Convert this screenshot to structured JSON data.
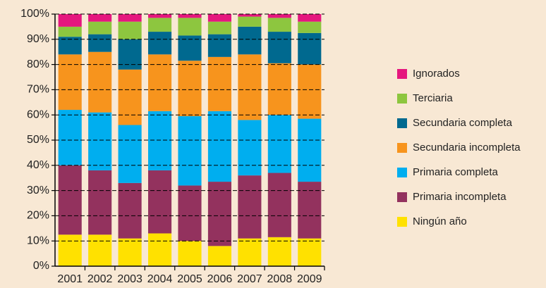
{
  "chart_data": {
    "type": "stacked_bar",
    "categories": [
      "2001",
      "2002",
      "2003",
      "2004",
      "2005",
      "2006",
      "2007",
      "2008",
      "2009"
    ],
    "series": [
      {
        "name": "Ningún año",
        "color": "#ffe100",
        "values": [
          12.5,
          12.5,
          11,
          13,
          10,
          8,
          11,
          11.5,
          11
        ]
      },
      {
        "name": "Primaria incompleta",
        "color": "#93325e",
        "values": [
          27.5,
          25.5,
          22,
          25,
          22,
          25.5,
          25,
          25.5,
          22.5
        ]
      },
      {
        "name": "Primaria completa",
        "color": "#00aeef",
        "values": [
          22,
          23,
          23,
          23.5,
          27.5,
          28,
          22,
          23,
          25
        ]
      },
      {
        "name": "Secundaria incompleta",
        "color": "#f7941d",
        "values": [
          22,
          24,
          22,
          22.5,
          22,
          21.5,
          26,
          20.5,
          21.5
        ]
      },
      {
        "name": "Secundaria completa",
        "color": "#00698f",
        "values": [
          7,
          7,
          12,
          9,
          10,
          9,
          11,
          12.5,
          12.5
        ]
      },
      {
        "name": "Terciaria",
        "color": "#8dc63f",
        "values": [
          4,
          5,
          7,
          5.5,
          7,
          5,
          4,
          5.5,
          4.5
        ]
      },
      {
        "name": "Ignorados",
        "color": "#e5177e",
        "values": [
          5,
          3,
          3,
          1.5,
          1.5,
          3,
          1,
          1.5,
          3
        ]
      }
    ],
    "ylim": [
      0,
      100
    ],
    "yticks": [
      {
        "value": 0,
        "label": "0%"
      },
      {
        "value": 10,
        "label": "10%"
      },
      {
        "value": 20,
        "label": "20%"
      },
      {
        "value": 30,
        "label": "30%"
      },
      {
        "value": 40,
        "label": "40%"
      },
      {
        "value": 50,
        "label": "50%"
      },
      {
        "value": 60,
        "label": "60%"
      },
      {
        "value": 70,
        "label": "70%"
      },
      {
        "value": 80,
        "label": "80%"
      },
      {
        "value": 90,
        "label": "90%"
      },
      {
        "value": 100,
        "label": "100%"
      }
    ],
    "grid": true,
    "legend": "right"
  }
}
